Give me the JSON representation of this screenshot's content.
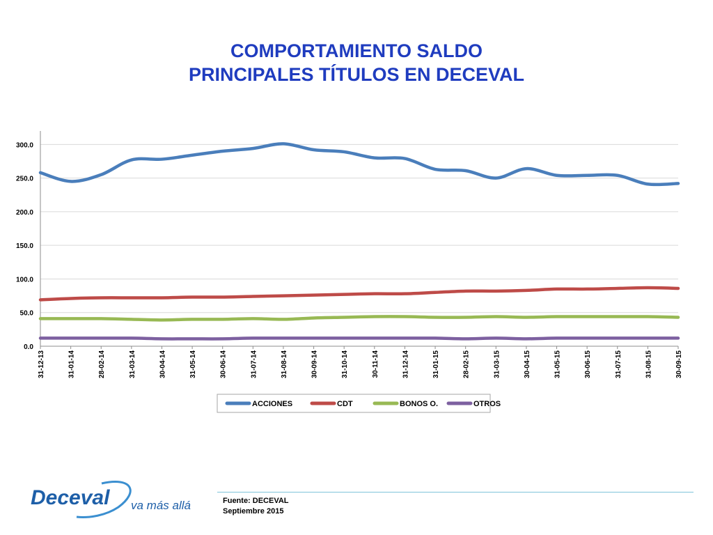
{
  "title": {
    "line1": "COMPORTAMIENTO SALDO",
    "line2": "PRINCIPALES TÍTULOS EN DECEVAL",
    "color": "#1f3cbf"
  },
  "chart_data": {
    "type": "line",
    "title": "",
    "xlabel": "",
    "ylabel": "",
    "ylim": [
      0,
      320
    ],
    "yticks": [
      "0.0",
      "50.0",
      "100.0",
      "150.0",
      "200.0",
      "250.0",
      "300.0"
    ],
    "ytick_values": [
      0,
      50,
      100,
      150,
      200,
      250,
      300
    ],
    "grid": true,
    "legend_position": "bottom",
    "x": [
      "31-12-13",
      "31-01-14",
      "28-02-14",
      "31-03-14",
      "30-04-14",
      "31-05-14",
      "30-06-14",
      "31-07-14",
      "31-08-14",
      "30-09-14",
      "31-10-14",
      "30-11-14",
      "31-12-14",
      "31-01-15",
      "28-02-15",
      "31-03-15",
      "30-04-15",
      "31-05-15",
      "30-06-15",
      "31-07-15",
      "31-08-15",
      "30-09-15"
    ],
    "series": [
      {
        "name": "ACCIONES",
        "color": "#4a7ebb",
        "values": [
          258,
          245,
          255,
          277,
          278,
          284,
          290,
          294,
          301,
          292,
          289,
          280,
          279,
          263,
          261,
          250,
          264,
          254,
          254,
          254,
          241,
          242
        ]
      },
      {
        "name": "CDT",
        "color": "#be4b48",
        "values": [
          69,
          71,
          72,
          72,
          72,
          73,
          73,
          74,
          75,
          76,
          77,
          78,
          78,
          80,
          82,
          82,
          83,
          85,
          85,
          86,
          87,
          86
        ]
      },
      {
        "name": "BONOS O.",
        "color": "#98b954",
        "values": [
          41,
          41,
          41,
          40,
          39,
          40,
          40,
          41,
          40,
          42,
          43,
          44,
          44,
          43,
          43,
          44,
          43,
          44,
          44,
          44,
          44,
          43
        ]
      },
      {
        "name": "OTROS",
        "color": "#7d60a0",
        "values": [
          12,
          12,
          12,
          12,
          11,
          11,
          11,
          12,
          12,
          12,
          12,
          12,
          12,
          12,
          11,
          12,
          11,
          12,
          12,
          12,
          12,
          12
        ]
      }
    ]
  },
  "footer": {
    "source_line1": "Fuente: DECEVAL",
    "source_line2": "Septiembre 2015",
    "logo_brand": "Deceval",
    "logo_tagline": "va más allá",
    "logo_color": "#1e5fa8"
  }
}
